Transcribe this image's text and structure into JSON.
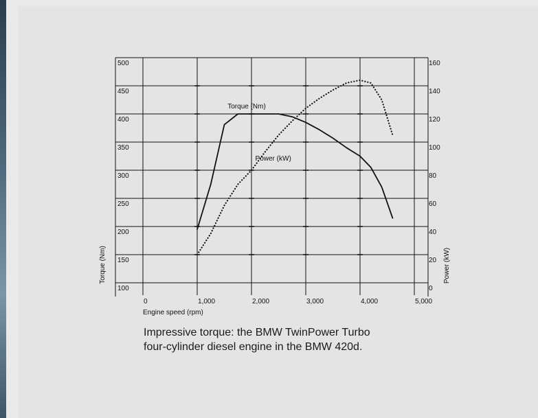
{
  "chart_data": {
    "type": "line",
    "xlabel": "Engine speed (rpm)",
    "ylabel_left": "Torque (Nm)",
    "ylabel_right": "Power (kW)",
    "xlim": [
      0,
      5000
    ],
    "ylim_left": [
      100,
      500
    ],
    "ylim_right": [
      0,
      160
    ],
    "x_ticks": [
      {
        "value": 0,
        "label": "0"
      },
      {
        "value": 1000,
        "label": "1,000"
      },
      {
        "value": 2000,
        "label": "2,000"
      },
      {
        "value": 3000,
        "label": "3,000"
      },
      {
        "value": 4000,
        "label": "4,000"
      },
      {
        "value": 5000,
        "label": "5,000"
      }
    ],
    "y_ticks_left": [
      {
        "value": 100,
        "label": "100"
      },
      {
        "value": 150,
        "label": "150"
      },
      {
        "value": 200,
        "label": "200"
      },
      {
        "value": 250,
        "label": "250"
      },
      {
        "value": 300,
        "label": "300"
      },
      {
        "value": 350,
        "label": "350"
      },
      {
        "value": 400,
        "label": "400"
      },
      {
        "value": 450,
        "label": "450"
      },
      {
        "value": 500,
        "label": "500"
      }
    ],
    "y_ticks_right": [
      {
        "value": 0,
        "label": "0"
      },
      {
        "value": 20,
        "label": "20"
      },
      {
        "value": 40,
        "label": "40"
      },
      {
        "value": 60,
        "label": "60"
      },
      {
        "value": 80,
        "label": "80"
      },
      {
        "value": 100,
        "label": "100"
      },
      {
        "value": 120,
        "label": "120"
      },
      {
        "value": 140,
        "label": "140"
      },
      {
        "value": 160,
        "label": "160"
      }
    ],
    "grid": true,
    "series": [
      {
        "name": "Torque (Nm)",
        "axis": "left",
        "style": "solid",
        "color": "#111111",
        "x": [
          1000,
          1250,
          1500,
          1750,
          2000,
          2250,
          2500,
          2750,
          3000,
          3250,
          3500,
          3750,
          4000,
          4200,
          4400,
          4600
        ],
        "y": [
          195,
          275,
          381,
          400,
          400,
          400,
          400,
          395,
          385,
          372,
          357,
          340,
          325,
          305,
          270,
          215
        ]
      },
      {
        "name": "Power (kW)",
        "axis": "right",
        "style": "dotted",
        "color": "#111111",
        "x": [
          1000,
          1250,
          1500,
          1750,
          2000,
          2250,
          2500,
          2750,
          3000,
          3250,
          3500,
          3750,
          4000,
          4200,
          4400,
          4600
        ],
        "y": [
          20,
          35,
          55,
          70,
          80,
          93,
          105,
          115,
          124,
          131,
          137,
          142,
          144,
          142,
          130,
          105
        ]
      }
    ],
    "annotations": [
      {
        "text": "Torque (Nm)",
        "x": 1940,
        "y_left": 410
      },
      {
        "text": "Power (kW)",
        "x": 2450,
        "y_left": 317
      }
    ]
  },
  "caption": {
    "line1": "Impressive torque: the BMW TwinPower Turbo",
    "line2": "four-cylinder diesel engine in the BMW 420d."
  }
}
